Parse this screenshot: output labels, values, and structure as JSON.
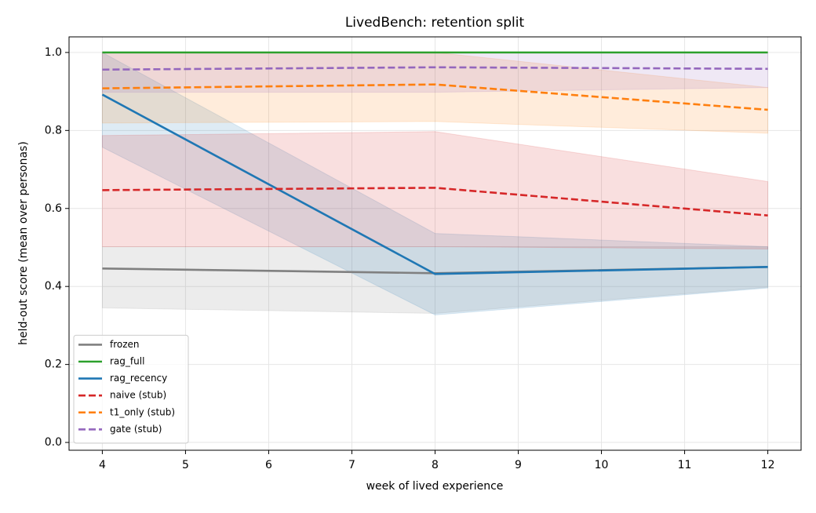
{
  "chart_data": {
    "type": "line",
    "title": "LivedBench: retention split",
    "x_label": "week of lived experience",
    "y_label": "held-out score (mean over personas)",
    "x": [
      4,
      8,
      12
    ],
    "series": [
      {
        "name": "frozen",
        "color": "#808080",
        "linestyle": "solid",
        "values": [
          0.446,
          0.434,
          0.45
        ],
        "lower": [
          0.345,
          0.331,
          0.398
        ],
        "upper": [
          0.502,
          0.502,
          0.502
        ]
      },
      {
        "name": "rag_full",
        "color": "#2ca02c",
        "linestyle": "solid",
        "values": [
          1.0,
          1.0,
          1.0
        ]
      },
      {
        "name": "rag_recency",
        "color": "#1f77b4",
        "linestyle": "solid",
        "values": [
          0.892,
          0.432,
          0.45
        ],
        "lower": [
          0.757,
          0.327,
          0.396
        ],
        "upper": [
          1.0,
          0.536,
          0.502
        ]
      },
      {
        "name": "naive (stub)",
        "color": "#d62728",
        "linestyle": "dashed",
        "values": [
          0.647,
          0.653,
          0.582
        ],
        "lower": [
          0.502,
          0.502,
          0.496
        ],
        "upper": [
          0.787,
          0.797,
          0.669
        ]
      },
      {
        "name": "t1_only (stub)",
        "color": "#ff7f0e",
        "linestyle": "dashed",
        "values": [
          0.908,
          0.918,
          0.853
        ],
        "lower": [
          0.819,
          0.823,
          0.793
        ],
        "upper": [
          1.0,
          1.0,
          0.91
        ]
      },
      {
        "name": "gate (stub)",
        "color": "#9467bd",
        "linestyle": "dashed",
        "values": [
          0.956,
          0.962,
          0.958
        ],
        "lower": [
          0.898,
          0.898,
          0.91
        ],
        "upper": [
          1.0,
          1.0,
          1.0
        ]
      }
    ],
    "xlim": [
      3.6,
      12.4
    ],
    "xticks": [
      4,
      5,
      6,
      7,
      8,
      9,
      10,
      11,
      12
    ],
    "ylim": [
      -0.02,
      1.04
    ],
    "yticks": [
      {
        "value": 0,
        "label": "0.0"
      },
      0.2,
      0.4,
      0.6,
      0.8,
      {
        "value": 1,
        "label": "1.0"
      }
    ],
    "grid": true,
    "legend": "lower left",
    "band_opacity": 0.15
  }
}
